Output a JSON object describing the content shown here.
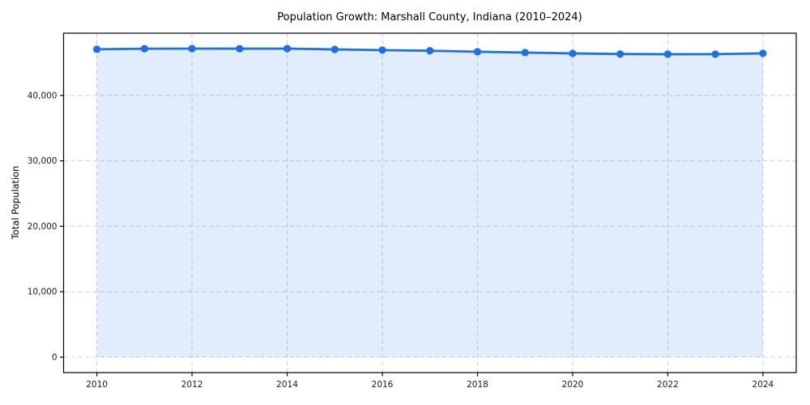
{
  "chart_data": {
    "type": "line",
    "title": "Population Growth: Marshall County, Indiana (2010–2024)",
    "xlabel": "",
    "ylabel": "Total Population",
    "x": [
      2010,
      2011,
      2012,
      2013,
      2014,
      2015,
      2016,
      2017,
      2018,
      2019,
      2020,
      2021,
      2022,
      2023,
      2024
    ],
    "series": [
      {
        "name": "Total Population",
        "values": [
          47050,
          47140,
          47160,
          47150,
          47160,
          47030,
          46930,
          46830,
          46680,
          46550,
          46420,
          46330,
          46300,
          46310,
          46430
        ]
      }
    ],
    "xlim": [
      2009.3,
      2024.7
    ],
    "ylim": [
      -2360,
      49510
    ],
    "xticks": {
      "values": [
        2010,
        2012,
        2014,
        2016,
        2018,
        2020,
        2022,
        2024
      ],
      "labels": [
        "2010",
        "2012",
        "2014",
        "2016",
        "2018",
        "2020",
        "2022",
        "2024"
      ]
    },
    "yticks": {
      "values": [
        0,
        10000,
        20000,
        30000,
        40000
      ],
      "labels": [
        "0",
        "10,000",
        "20,000",
        "30,000",
        "40,000"
      ]
    },
    "grid": true,
    "grid_style": "dashed",
    "legend": false,
    "area_fill_to_zero": true,
    "line_color": "#1b6fe8",
    "marker_color": "#1b6fe8",
    "fill_color": "rgba(27,111,232,0.13)",
    "grid_color": "#c9ced6",
    "axis_color": "#000000",
    "tick_label_color": "#1a1a1a"
  }
}
